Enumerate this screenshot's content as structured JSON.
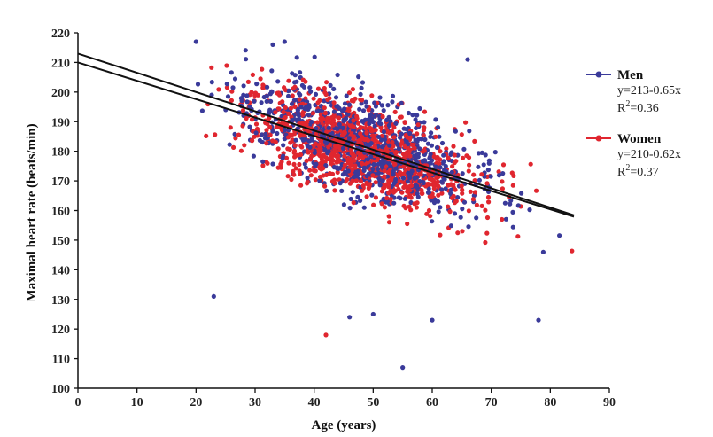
{
  "chart_data": {
    "type": "scatter",
    "xlabel": "Age (years)",
    "ylabel": "Maximal heart rate (beats/min)",
    "xlim": [
      0,
      90
    ],
    "ylim": [
      100,
      220
    ],
    "x_ticks": [
      0,
      10,
      20,
      30,
      40,
      50,
      60,
      70,
      80,
      90
    ],
    "y_ticks": [
      100,
      110,
      120,
      130,
      140,
      150,
      160,
      170,
      180,
      190,
      200,
      210,
      220
    ],
    "grid": false,
    "legend_position": "right",
    "series": [
      {
        "name": "Men",
        "color": "#3a3a9a",
        "equation": "y=213-0.65x",
        "r2_label": "R",
        "r2_sup": "2",
        "r2_value": "=0.36",
        "regression": {
          "intercept": 213,
          "slope": -0.65,
          "x_range": [
            0,
            84
          ]
        },
        "points_model": {
          "x_range": [
            19,
            84
          ],
          "mean_intercept": 213,
          "mean_slope": -0.65,
          "sd": 11
        }
      },
      {
        "name": "Women",
        "color": "#e0262f",
        "equation": "y=210-0.62x",
        "r2_label": "R",
        "r2_sup": "2",
        "r2_value": "=0.37",
        "regression": {
          "intercept": 210,
          "slope": -0.62,
          "x_range": [
            0,
            84
          ]
        },
        "points_model": {
          "x_range": [
            19,
            84
          ],
          "mean_intercept": 210,
          "mean_slope": -0.62,
          "sd": 10
        }
      }
    ],
    "outliers": {
      "Men": [
        [
          23,
          131
        ],
        [
          46,
          124
        ],
        [
          50,
          125
        ],
        [
          55,
          107
        ],
        [
          60,
          123
        ],
        [
          78,
          123
        ],
        [
          66,
          211
        ],
        [
          33,
          216
        ],
        [
          20,
          217
        ],
        [
          35,
          217
        ]
      ],
      "Women": [
        [
          42,
          118
        ]
      ]
    }
  }
}
